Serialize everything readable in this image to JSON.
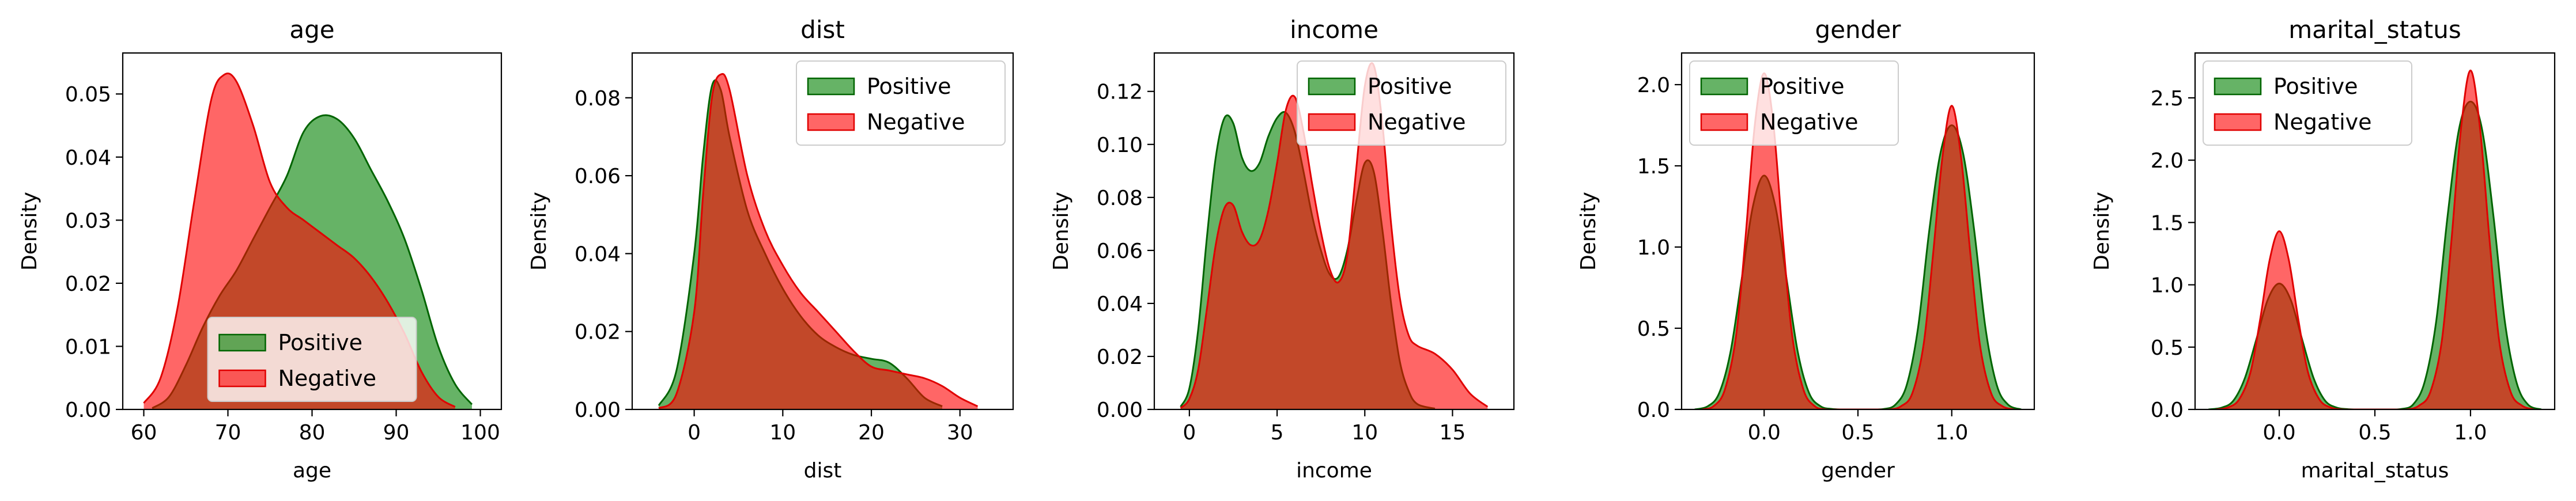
{
  "legend_labels": {
    "positive": "Positive",
    "negative": "Negative"
  },
  "colors": {
    "positive_fill": "#008000",
    "positive_line": "#006400",
    "negative_fill": "#ff0000",
    "negative_line": "#e00000",
    "overlap": "#a23a1e"
  },
  "chart_data": [
    {
      "type": "area",
      "title": "age",
      "xlabel": "age",
      "ylabel": "Density",
      "xlim": [
        57.5,
        102.5
      ],
      "ylim": [
        0,
        0.0565
      ],
      "xticks": [
        60,
        70,
        80,
        90,
        100
      ],
      "yticks": [
        0.0,
        0.01,
        0.02,
        0.03,
        0.04,
        0.05
      ],
      "ytick_labels": [
        "0.00",
        "0.01",
        "0.02",
        "0.03",
        "0.04",
        "0.05"
      ],
      "legend": "lower-center",
      "series": [
        {
          "name": "Positive",
          "x": [
            61,
            63,
            65,
            67,
            69,
            71,
            73,
            75,
            77,
            79,
            81,
            83,
            85,
            87,
            89,
            91,
            93,
            95,
            97,
            99
          ],
          "values": [
            0.0002,
            0.002,
            0.007,
            0.013,
            0.018,
            0.022,
            0.027,
            0.032,
            0.037,
            0.044,
            0.0465,
            0.046,
            0.043,
            0.038,
            0.033,
            0.027,
            0.019,
            0.01,
            0.004,
            0.0008
          ]
        },
        {
          "name": "Negative",
          "x": [
            60,
            62,
            64,
            66,
            68,
            69.5,
            71,
            73,
            75,
            77,
            79,
            81,
            83,
            85,
            87,
            89,
            91,
            93,
            95,
            97
          ],
          "values": [
            0.001,
            0.005,
            0.016,
            0.033,
            0.049,
            0.053,
            0.052,
            0.045,
            0.036,
            0.032,
            0.03,
            0.028,
            0.026,
            0.024,
            0.021,
            0.017,
            0.012,
            0.006,
            0.002,
            0.0004
          ]
        }
      ]
    },
    {
      "type": "area",
      "title": "dist",
      "xlabel": "dist",
      "ylabel": "Density",
      "xlim": [
        -7,
        36
      ],
      "ylim": [
        0,
        0.0915
      ],
      "xticks": [
        0,
        10,
        20,
        30
      ],
      "yticks": [
        0.0,
        0.02,
        0.04,
        0.06,
        0.08
      ],
      "ytick_labels": [
        "0.00",
        "0.02",
        "0.04",
        "0.06",
        "0.08"
      ],
      "legend": "upper-right",
      "series": [
        {
          "name": "Positive",
          "x": [
            -4,
            -2,
            0,
            1,
            2,
            3,
            4,
            6,
            8,
            10,
            12,
            14,
            16,
            18,
            20,
            22,
            24,
            26,
            28
          ],
          "values": [
            0.001,
            0.01,
            0.04,
            0.065,
            0.083,
            0.082,
            0.07,
            0.051,
            0.04,
            0.031,
            0.024,
            0.019,
            0.016,
            0.014,
            0.013,
            0.012,
            0.008,
            0.003,
            0.0008
          ]
        },
        {
          "name": "Negative",
          "x": [
            -4,
            -2,
            0,
            1,
            2,
            3,
            4,
            6,
            8,
            10,
            12,
            14,
            16,
            18,
            20,
            22,
            24,
            26,
            28,
            30,
            32
          ],
          "values": [
            0.0003,
            0.004,
            0.025,
            0.055,
            0.08,
            0.086,
            0.082,
            0.06,
            0.046,
            0.037,
            0.03,
            0.025,
            0.02,
            0.015,
            0.011,
            0.01,
            0.009,
            0.008,
            0.006,
            0.003,
            0.0008
          ]
        }
      ]
    },
    {
      "type": "area",
      "title": "income",
      "xlabel": "income",
      "ylabel": "Density",
      "xlim": [
        -2,
        18.5
      ],
      "ylim": [
        0,
        0.1345
      ],
      "xticks": [
        0,
        5,
        10,
        15
      ],
      "yticks": [
        0.0,
        0.02,
        0.04,
        0.06,
        0.08,
        0.1,
        0.12
      ],
      "ytick_labels": [
        "0.00",
        "0.02",
        "0.04",
        "0.06",
        "0.08",
        "0.10",
        "0.12"
      ],
      "legend": "upper-right",
      "series": [
        {
          "name": "Positive",
          "x": [
            -0.5,
            0,
            0.5,
            1,
            1.5,
            2,
            2.5,
            3,
            3.5,
            4,
            4.5,
            5,
            5.5,
            6,
            6.5,
            7,
            7.5,
            8,
            8.5,
            9,
            9.5,
            10,
            10.5,
            11,
            11.5,
            12,
            12.5,
            13,
            14
          ],
          "values": [
            0.001,
            0.008,
            0.03,
            0.065,
            0.095,
            0.11,
            0.108,
            0.095,
            0.09,
            0.093,
            0.103,
            0.11,
            0.112,
            0.105,
            0.09,
            0.073,
            0.06,
            0.051,
            0.05,
            0.06,
            0.078,
            0.093,
            0.09,
            0.068,
            0.04,
            0.018,
            0.007,
            0.002,
            0.0003
          ]
        },
        {
          "name": "Negative",
          "x": [
            -0.5,
            0,
            0.5,
            1,
            1.5,
            2,
            2.5,
            3,
            3.5,
            4,
            4.5,
            5,
            5.5,
            6,
            6.5,
            7,
            7.5,
            8,
            8.5,
            9,
            9.5,
            10,
            10.5,
            11,
            11.5,
            12,
            12.5,
            13,
            14,
            15,
            16,
            17
          ],
          "values": [
            0.0005,
            0.004,
            0.015,
            0.038,
            0.062,
            0.076,
            0.077,
            0.067,
            0.062,
            0.064,
            0.075,
            0.093,
            0.113,
            0.118,
            0.105,
            0.085,
            0.067,
            0.053,
            0.048,
            0.058,
            0.09,
            0.122,
            0.13,
            0.108,
            0.07,
            0.042,
            0.028,
            0.024,
            0.021,
            0.015,
            0.006,
            0.001
          ]
        }
      ]
    },
    {
      "type": "area",
      "title": "gender",
      "xlabel": "gender",
      "ylabel": "Density",
      "xlim": [
        -0.44,
        1.44
      ],
      "ylim": [
        0,
        2.195
      ],
      "xticks": [
        0.0,
        0.5,
        1.0
      ],
      "xtick_labels": [
        "0.0",
        "0.5",
        "1.0"
      ],
      "yticks": [
        0.0,
        0.5,
        1.0,
        1.5,
        2.0
      ],
      "ytick_labels": [
        "0.0",
        "0.5",
        "1.0",
        "1.5",
        "2.0"
      ],
      "legend": "upper-left",
      "series": [
        {
          "name": "Positive",
          "x": [
            -0.37,
            -0.3,
            -0.24,
            -0.18,
            -0.12,
            -0.06,
            0,
            0.06,
            0.12,
            0.18,
            0.24,
            0.3,
            0.36,
            0.42,
            0.5,
            0.58,
            0.64,
            0.7,
            0.76,
            0.82,
            0.88,
            0.94,
            1.0,
            1.06,
            1.12,
            1.18,
            1.24,
            1.3,
            1.37
          ],
          "values": [
            0.0,
            0.02,
            0.1,
            0.35,
            0.8,
            1.25,
            1.44,
            1.25,
            0.8,
            0.35,
            0.1,
            0.02,
            0.003,
            0.0,
            0.0,
            0.0,
            0.003,
            0.03,
            0.15,
            0.5,
            1.1,
            1.58,
            1.75,
            1.58,
            1.1,
            0.5,
            0.15,
            0.03,
            0.0
          ]
        },
        {
          "name": "Negative",
          "x": [
            -0.33,
            -0.27,
            -0.21,
            -0.15,
            -0.1,
            -0.05,
            0,
            0.05,
            0.1,
            0.15,
            0.21,
            0.27,
            0.33,
            0.4,
            0.5,
            0.6,
            0.67,
            0.73,
            0.79,
            0.85,
            0.9,
            0.95,
            1.0,
            1.05,
            1.1,
            1.15,
            1.21,
            1.27,
            1.33
          ],
          "values": [
            0.0,
            0.02,
            0.12,
            0.45,
            1.05,
            1.75,
            2.07,
            1.75,
            1.05,
            0.45,
            0.12,
            0.02,
            0.0,
            0.0,
            0.0,
            0.0,
            0.0,
            0.02,
            0.1,
            0.4,
            0.95,
            1.55,
            1.87,
            1.55,
            0.95,
            0.4,
            0.1,
            0.02,
            0.0
          ]
        }
      ]
    },
    {
      "type": "area",
      "title": "marital_status",
      "xlabel": "marital_status",
      "ylabel": "Density",
      "xlim": [
        -0.44,
        1.44
      ],
      "ylim": [
        0,
        2.86
      ],
      "xticks": [
        0.0,
        0.5,
        1.0
      ],
      "xtick_labels": [
        "0.0",
        "0.5",
        "1.0"
      ],
      "yticks": [
        0.0,
        0.5,
        1.0,
        1.5,
        2.0,
        2.5
      ],
      "ytick_labels": [
        "0.0",
        "0.5",
        "1.0",
        "1.5",
        "2.0",
        "2.5"
      ],
      "legend": "upper-left",
      "series": [
        {
          "name": "Positive",
          "x": [
            -0.37,
            -0.3,
            -0.24,
            -0.18,
            -0.12,
            -0.06,
            0,
            0.06,
            0.12,
            0.18,
            0.24,
            0.3,
            0.36,
            0.42,
            0.5,
            0.58,
            0.64,
            0.7,
            0.76,
            0.82,
            0.88,
            0.94,
            1.0,
            1.06,
            1.12,
            1.18,
            1.24,
            1.3,
            1.37
          ],
          "values": [
            0.0,
            0.015,
            0.07,
            0.25,
            0.56,
            0.88,
            1.01,
            0.88,
            0.56,
            0.25,
            0.07,
            0.015,
            0.002,
            0.0,
            0.0,
            0.0,
            0.004,
            0.04,
            0.22,
            0.7,
            1.55,
            2.25,
            2.47,
            2.25,
            1.55,
            0.7,
            0.22,
            0.04,
            0.0
          ]
        },
        {
          "name": "Negative",
          "x": [
            -0.33,
            -0.27,
            -0.21,
            -0.15,
            -0.1,
            -0.05,
            0,
            0.05,
            0.1,
            0.15,
            0.21,
            0.27,
            0.33,
            0.4,
            0.5,
            0.6,
            0.67,
            0.73,
            0.79,
            0.85,
            0.9,
            0.95,
            1.0,
            1.05,
            1.1,
            1.15,
            1.21,
            1.27,
            1.33
          ],
          "values": [
            0.0,
            0.015,
            0.08,
            0.3,
            0.72,
            1.2,
            1.43,
            1.2,
            0.72,
            0.3,
            0.08,
            0.015,
            0.0,
            0.0,
            0.0,
            0.0,
            0.0,
            0.03,
            0.14,
            0.55,
            1.35,
            2.25,
            2.72,
            2.25,
            1.35,
            0.55,
            0.14,
            0.03,
            0.0
          ]
        }
      ]
    }
  ]
}
